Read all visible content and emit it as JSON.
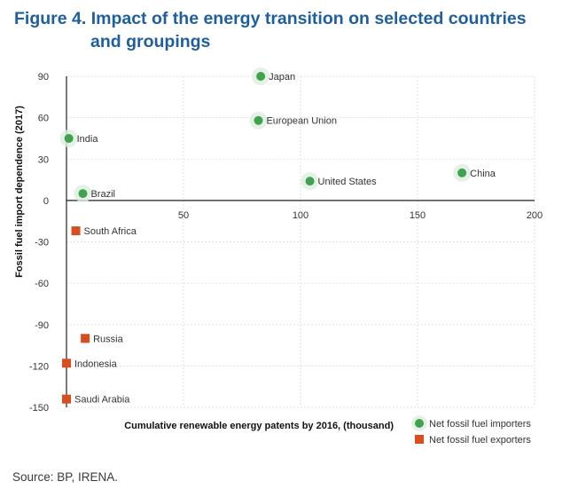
{
  "figure": {
    "number": "Figure 4.",
    "title_line1": "Impact of the energy transition on selected countries",
    "title_line2": "and groupings"
  },
  "source": "Source: BP, IRENA.",
  "colors": {
    "title": "#1f5fa0",
    "importer": "#3fa34d",
    "exporter": "#d84e1f",
    "grid": "#d9d9d9",
    "axis": "#222222"
  },
  "chart_data": {
    "type": "scatter",
    "xlabel": "Cumulative renewable energy patents by 2016, (thousand)",
    "ylabel": "Fossil fuel import dependence (2017)",
    "xlim": [
      0,
      200
    ],
    "ylim": [
      -150,
      90
    ],
    "xticks": [
      50,
      100,
      150,
      200
    ],
    "yticks": [
      90,
      60,
      30,
      0,
      -30,
      -60,
      -90,
      -120,
      -150
    ],
    "grid": "dashed",
    "legend_position": "bottom-right",
    "series": [
      {
        "name": "Net fossil fuel importers",
        "marker": "circle",
        "points": [
          {
            "label": "Japan",
            "x": 83,
            "y": 90
          },
          {
            "label": "European Union",
            "x": 82,
            "y": 58
          },
          {
            "label": "India",
            "x": 1,
            "y": 45
          },
          {
            "label": "United States",
            "x": 104,
            "y": 14
          },
          {
            "label": "China",
            "x": 169,
            "y": 20
          },
          {
            "label": "Brazil",
            "x": 7,
            "y": 5
          }
        ]
      },
      {
        "name": "Net fossil fuel exporters",
        "marker": "square",
        "points": [
          {
            "label": "South Africa",
            "x": 4,
            "y": -22
          },
          {
            "label": "Russia",
            "x": 8,
            "y": -100
          },
          {
            "label": "Indonesia",
            "x": 0,
            "y": -118
          },
          {
            "label": "Saudi Arabia",
            "x": 0,
            "y": -144
          }
        ]
      }
    ]
  }
}
